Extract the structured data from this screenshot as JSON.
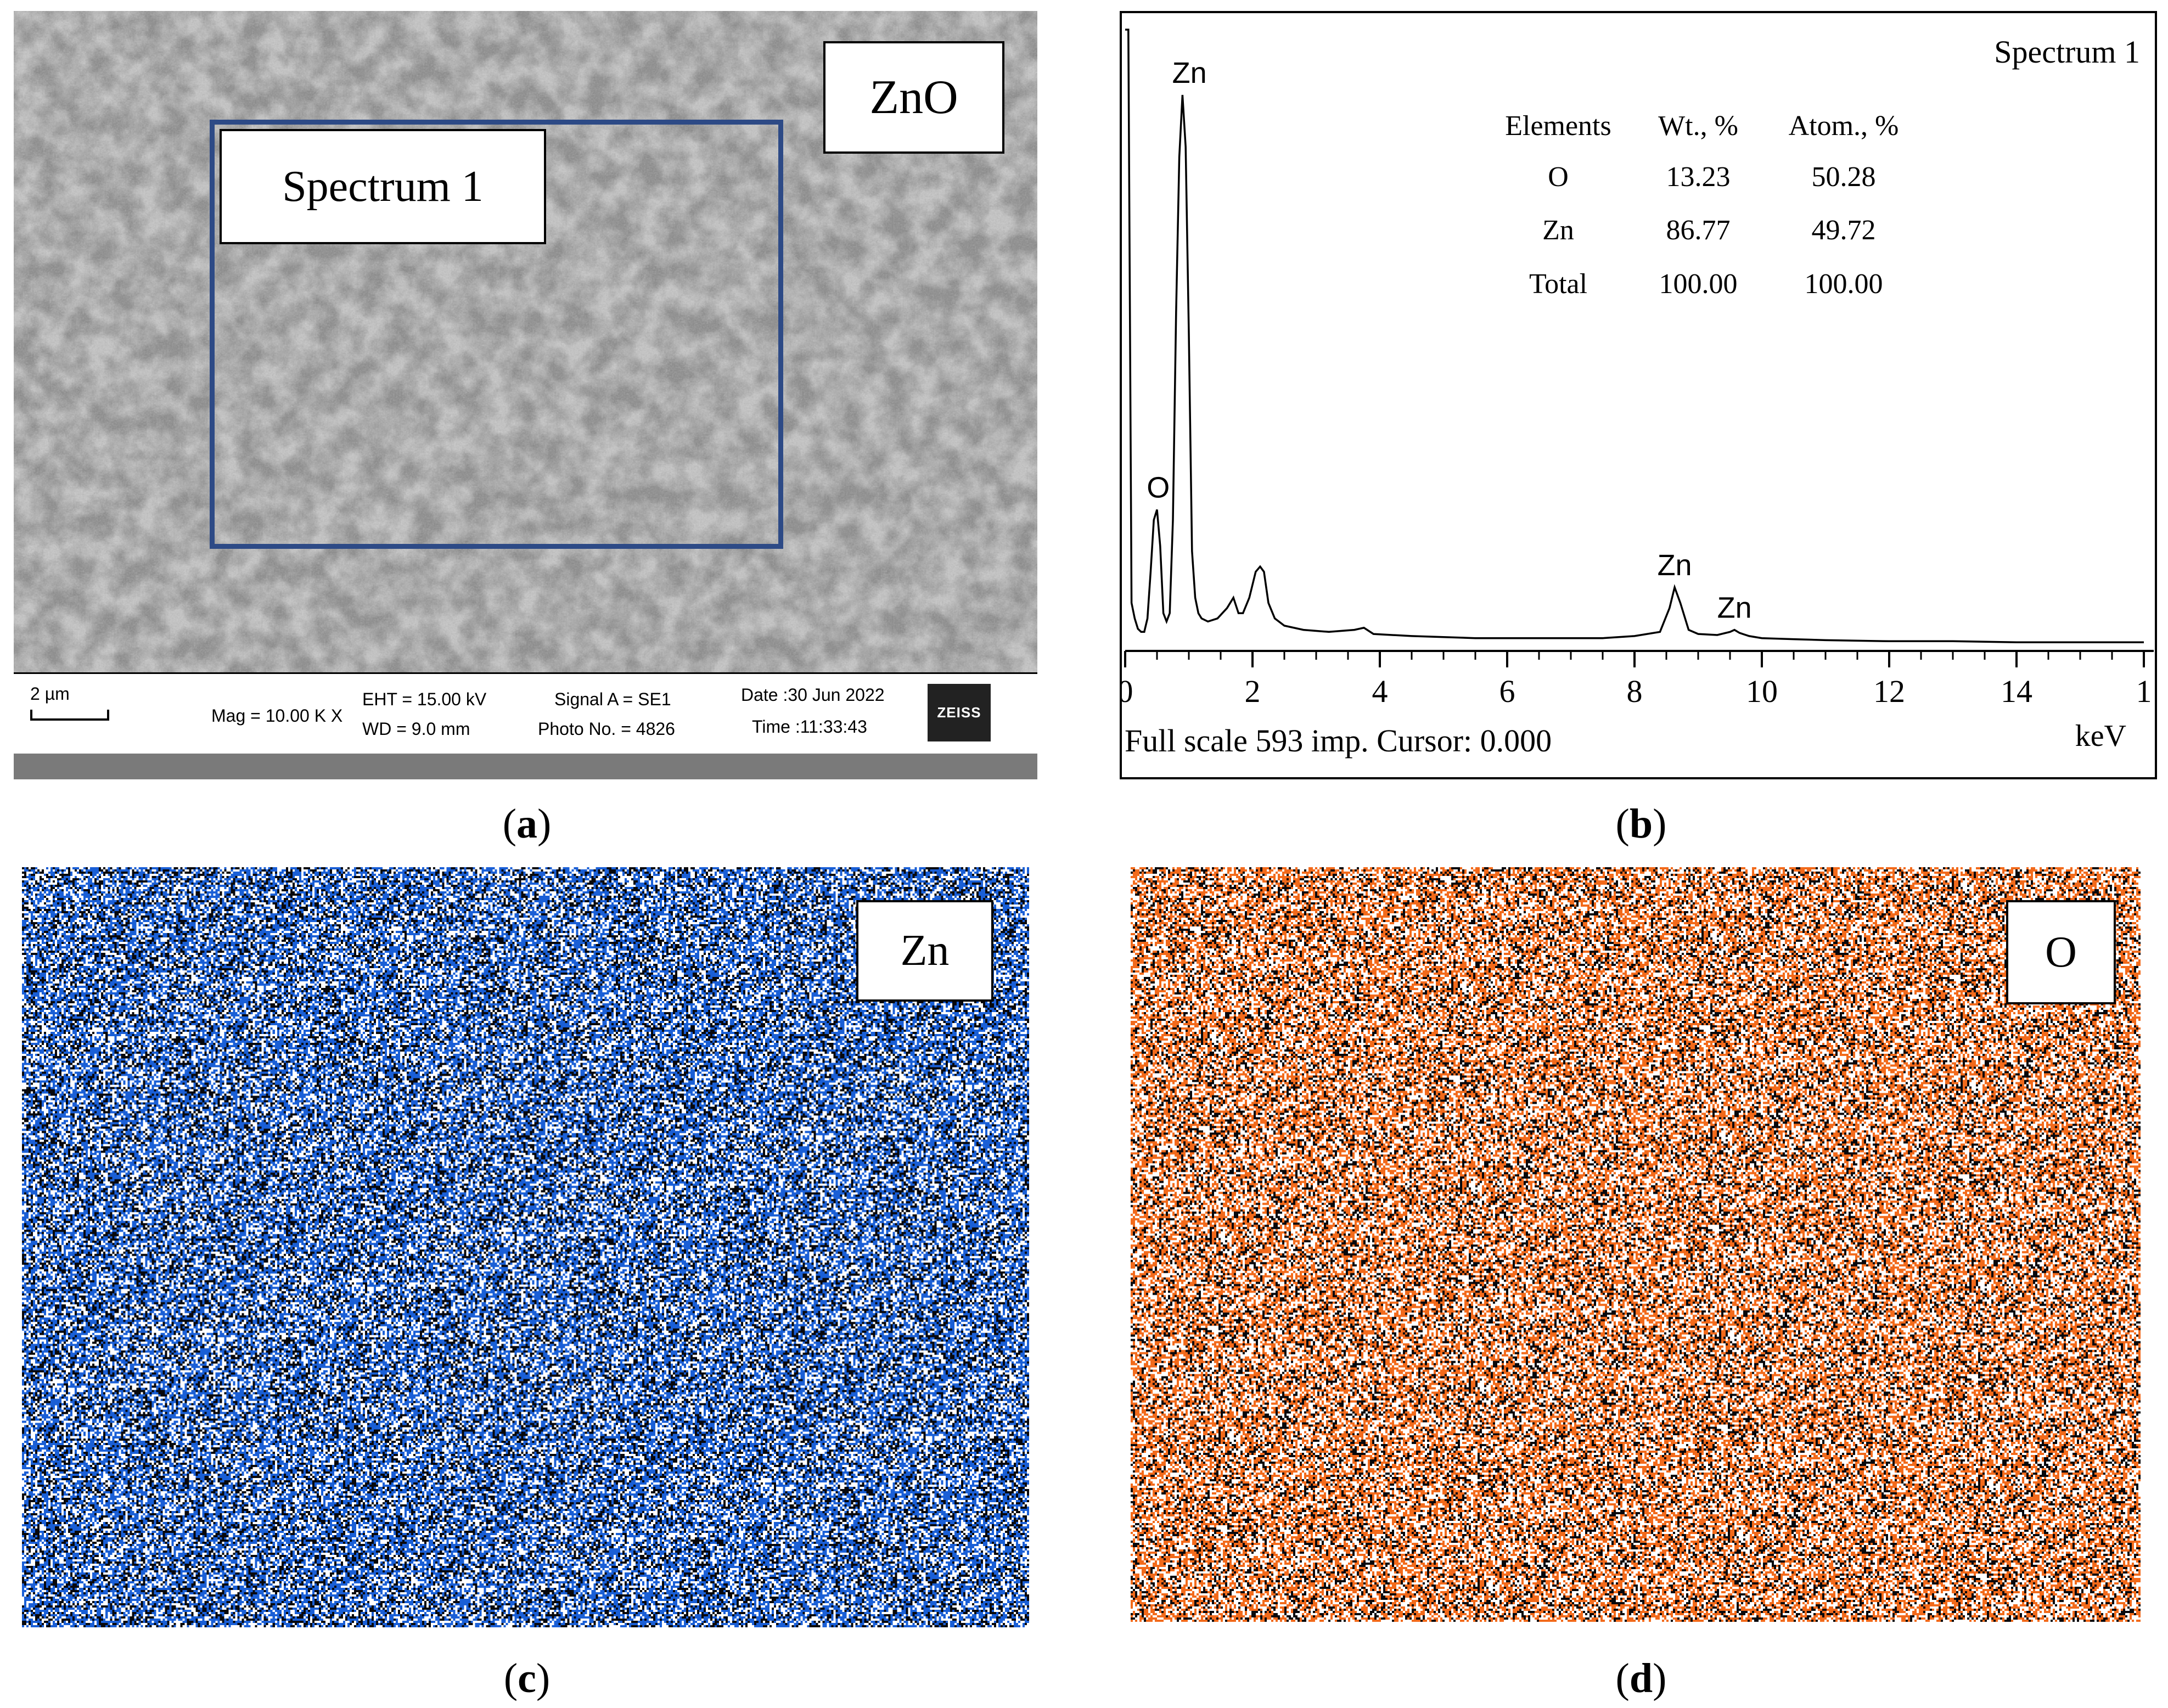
{
  "panel_a": {
    "caption_letter": "a",
    "material_label": "ZnO",
    "region_label": "Spectrum 1",
    "scale_bar": "2 µm",
    "mag": "Mag =  10.00 K X",
    "eht": "EHT = 15.00 kV",
    "wd": "WD =  9.0 mm",
    "signal": "Signal A = SE1",
    "photo": "Photo No. = 4826",
    "date": "Date :30 Jun 2022",
    "time": "Time :11:33:43",
    "logo": "ZEISS"
  },
  "panel_b": {
    "caption_letter": "b",
    "title": "Spectrum 1",
    "table": {
      "headers": [
        "Elements",
        "Wt., %",
        "Atom., %"
      ],
      "rows": [
        [
          "O",
          "13.23",
          "50.28"
        ],
        [
          "Zn",
          "86.77",
          "49.72"
        ],
        [
          "Total",
          "100.00",
          "100.00"
        ]
      ]
    },
    "footer": "Full scale 593 imp. Cursor: 0.000",
    "x_unit": "keV"
  },
  "panel_c": {
    "caption_letter": "c",
    "element_label": "Zn",
    "color": "#1a5fd6"
  },
  "panel_d": {
    "caption_letter": "d",
    "element_label": "O",
    "color": "#f26a1b"
  },
  "chart_data": {
    "type": "line",
    "title": "Spectrum 1",
    "xlabel": "keV",
    "ylabel": "",
    "xlim": [
      0,
      16
    ],
    "ylim": [
      0,
      593
    ],
    "x_ticks": [
      "0",
      "2",
      "4",
      "6",
      "8",
      "10",
      "12",
      "14",
      "1"
    ],
    "peaks": [
      {
        "label": "O",
        "x": 0.52,
        "y": 130
      },
      {
        "label": "Zn",
        "x": 1.01,
        "y": 530
      },
      {
        "label": "Zn",
        "x": 8.63,
        "y": 55
      },
      {
        "label": "Zn",
        "x": 9.57,
        "y": 14
      }
    ],
    "series": [
      {
        "name": "Spectrum 1",
        "x": [
          0,
          0.05,
          0.1,
          0.15,
          0.2,
          0.25,
          0.3,
          0.35,
          0.4,
          0.45,
          0.5,
          0.55,
          0.6,
          0.65,
          0.7,
          0.75,
          0.8,
          0.85,
          0.9,
          0.95,
          1.0,
          1.05,
          1.1,
          1.15,
          1.2,
          1.3,
          1.45,
          1.6,
          1.7,
          1.78,
          1.85,
          1.95,
          2.05,
          2.12,
          2.18,
          2.25,
          2.35,
          2.5,
          2.8,
          3.2,
          3.6,
          3.75,
          3.9,
          4.5,
          5.5,
          6.5,
          7.5,
          8.0,
          8.4,
          8.55,
          8.63,
          8.72,
          8.85,
          9.0,
          9.3,
          9.5,
          9.57,
          9.65,
          9.8,
          10.0,
          10.5,
          11.0,
          12.0,
          13.0,
          14.0,
          15.0,
          16.0
        ],
        "y": [
          593,
          593,
          40,
          25,
          15,
          12,
          12,
          25,
          70,
          120,
          130,
          95,
          30,
          22,
          30,
          120,
          320,
          470,
          530,
          480,
          300,
          90,
          45,
          30,
          25,
          22,
          25,
          35,
          45,
          30,
          30,
          45,
          70,
          75,
          70,
          40,
          25,
          18,
          14,
          12,
          14,
          16,
          10,
          8,
          6,
          6,
          6,
          8,
          12,
          35,
          55,
          40,
          14,
          10,
          9,
          12,
          14,
          11,
          8,
          6,
          5,
          4,
          3,
          3,
          2,
          2,
          2
        ]
      }
    ]
  }
}
